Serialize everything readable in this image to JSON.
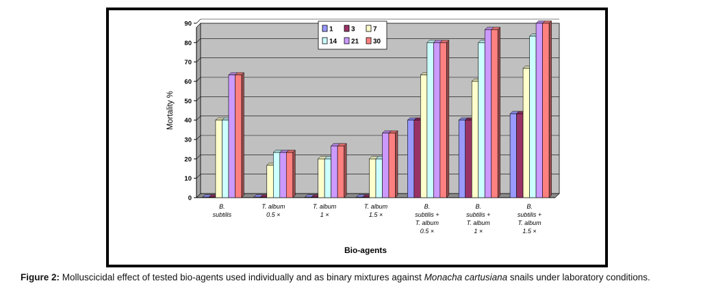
{
  "caption": {
    "label": "Figure 2:",
    "text_before": " Molluscicidal effect of tested bio-agents used individually and as binary mixtures against ",
    "species": "Monacha cartusiana",
    "text_after": " snails under laboratory conditions."
  },
  "chart_data": {
    "type": "bar",
    "style": "3d-clustered",
    "title": "",
    "xlabel": "Bio-agents",
    "ylabel": "Mortality %",
    "ylim": [
      0,
      90
    ],
    "yticks": [
      0,
      10,
      20,
      30,
      40,
      50,
      60,
      70,
      80,
      90
    ],
    "grid": true,
    "legend_position": "top-center",
    "plot_background": "#c0c0c0",
    "categories": [
      [
        "B.",
        "subtilis"
      ],
      [
        "T. album",
        "0.5 ×"
      ],
      [
        "T. album",
        "1 ×"
      ],
      [
        "T. album",
        "1.5 ×"
      ],
      [
        "B.",
        "subtilis +",
        "T. album",
        "0.5 ×"
      ],
      [
        "B.",
        "subtilis +",
        "T. album",
        "1 ×"
      ],
      [
        "B.",
        "subtilis +",
        "T. album",
        "1.5 ×"
      ]
    ],
    "series": [
      {
        "name": "1",
        "color": "#9999ff",
        "values": [
          0,
          0,
          0,
          0,
          40,
          40,
          43.3
        ]
      },
      {
        "name": "3",
        "color": "#993366",
        "values": [
          0,
          0,
          0,
          0,
          40,
          40,
          43.3
        ]
      },
      {
        "name": "7",
        "color": "#ffffcc",
        "values": [
          40,
          16.7,
          20,
          20,
          63.3,
          60,
          66.7
        ]
      },
      {
        "name": "14",
        "color": "#ccffff",
        "values": [
          40,
          23.3,
          20,
          20,
          80,
          80,
          83.3
        ]
      },
      {
        "name": "21",
        "color": "#cc99ff",
        "values": [
          63.3,
          23.3,
          26.7,
          33.3,
          80,
          86.7,
          90
        ]
      },
      {
        "name": "30",
        "color": "#ff8080",
        "values": [
          63.3,
          23.3,
          26.7,
          33.3,
          80,
          86.7,
          90
        ]
      }
    ]
  }
}
